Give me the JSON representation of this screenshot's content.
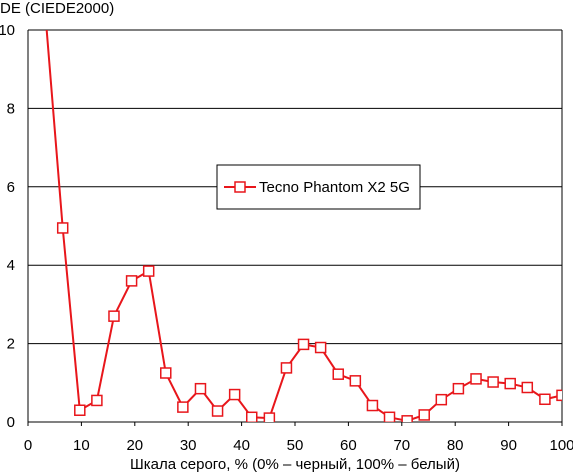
{
  "chart_data": {
    "type": "line",
    "ylabel": "DE (CIEDE2000)",
    "xlabel": "Шкала серого, % (0% – черный, 100% – белый)",
    "xlim": [
      0,
      100
    ],
    "ylim": [
      0,
      10
    ],
    "x_ticks": [
      "0",
      "10",
      "20",
      "30",
      "40",
      "50",
      "60",
      "70",
      "80",
      "90",
      "100"
    ],
    "y_ticks": [
      "0",
      "2",
      "4",
      "6",
      "8",
      "10"
    ],
    "grid": "horizontal",
    "legend_position": "center",
    "series": [
      {
        "name": "Tecno Phantom X2 5G",
        "color": "#e8161b",
        "marker": "open-square",
        "x": [
          3.2,
          6.5,
          9.7,
          12.9,
          16.1,
          19.4,
          22.6,
          25.8,
          29.0,
          32.3,
          35.5,
          38.7,
          41.9,
          45.2,
          48.4,
          51.6,
          54.8,
          58.1,
          61.3,
          64.5,
          67.7,
          71.0,
          74.2,
          77.4,
          80.6,
          83.9,
          87.1,
          90.3,
          93.5,
          96.8,
          100.0
        ],
        "y": [
          10.5,
          4.95,
          0.3,
          0.55,
          2.7,
          3.6,
          3.85,
          1.25,
          0.38,
          0.85,
          0.28,
          0.7,
          0.12,
          0.1,
          1.38,
          1.98,
          1.9,
          1.22,
          1.05,
          0.42,
          0.12,
          0.03,
          0.18,
          0.57,
          0.85,
          1.1,
          1.02,
          0.98,
          0.88,
          0.58,
          0.68
        ]
      }
    ]
  }
}
